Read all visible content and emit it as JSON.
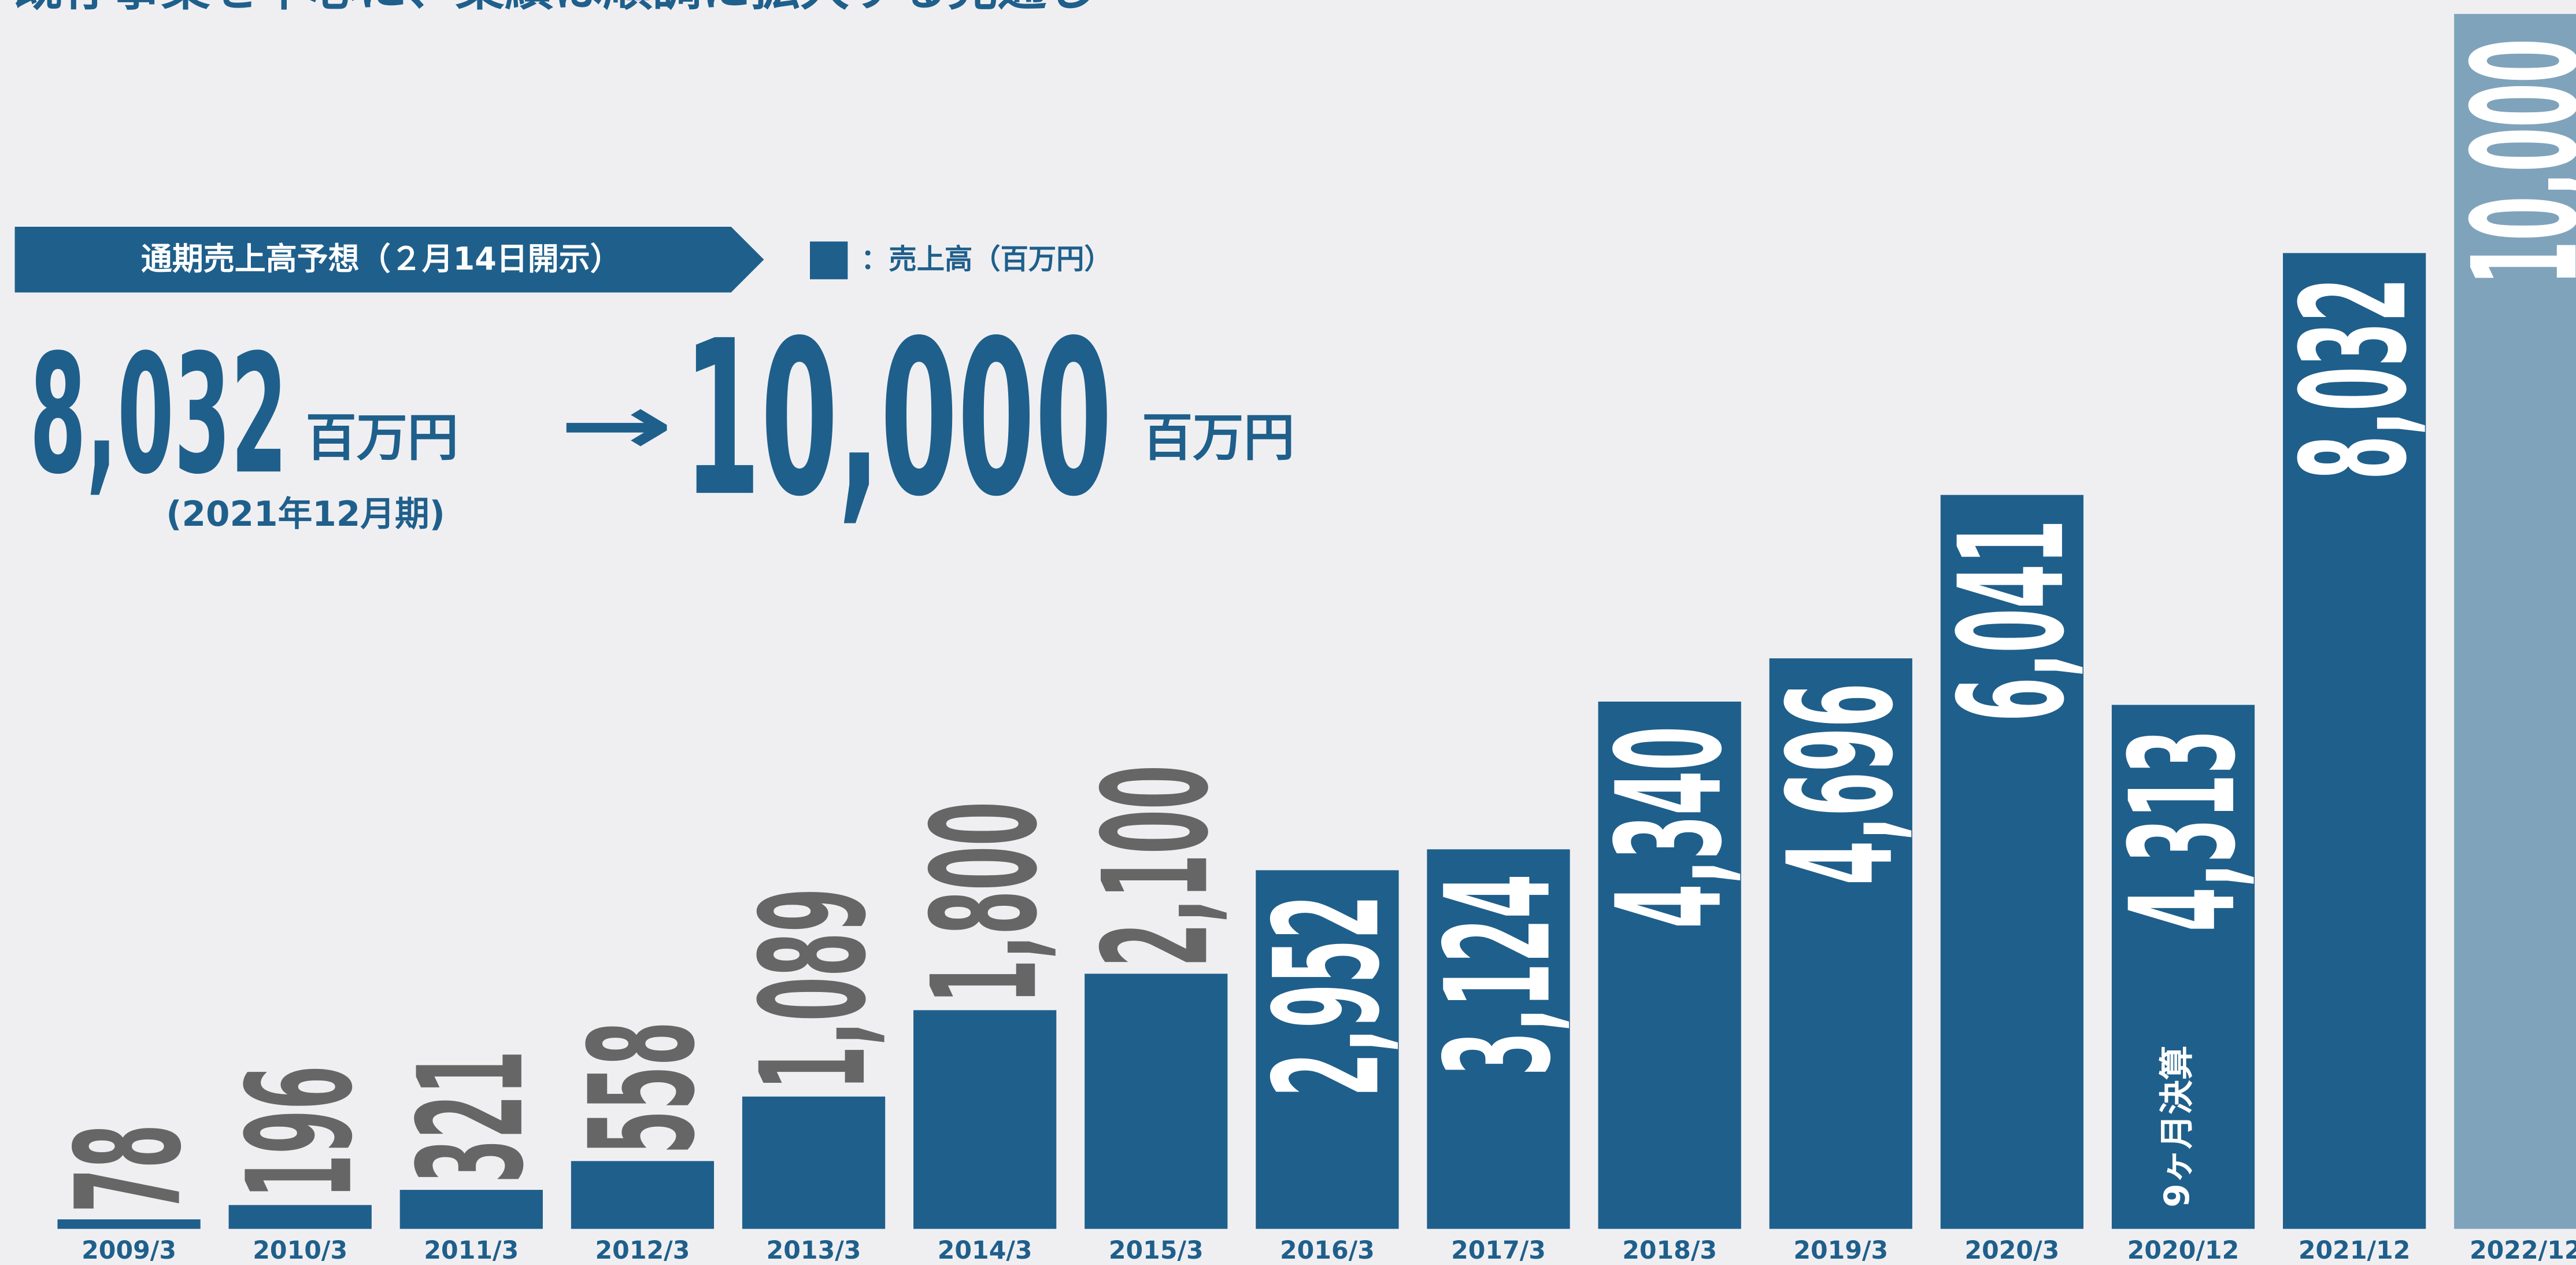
{
  "chart_data": {
    "type": "bar",
    "title": "既存事業を中心に、業績は順調に拡大する見通し",
    "categories": [
      "2009/3",
      "2010/3",
      "2011/3",
      "2012/3",
      "2013/3",
      "2014/3",
      "2015/3",
      "2016/3",
      "2017/3",
      "2018/3",
      "2019/3",
      "2020/3",
      "2020/12",
      "2021/12",
      "2022/12"
    ],
    "values": [
      78,
      196,
      321,
      558,
      1089,
      1800,
      2100,
      2952,
      3124,
      4340,
      4696,
      6041,
      4313,
      8032,
      10000
    ],
    "value_labels": [
      "78",
      "196",
      "321",
      "558",
      "1,089",
      "1,800",
      "2,100",
      "2,952",
      "3,124",
      "4,340",
      "4,696",
      "6,041",
      "4,313",
      "8,032",
      "10,000"
    ],
    "colors": [
      "#1f5f8b",
      "#1f5f8b",
      "#1f5f8b",
      "#1f5f8b",
      "#1f5f8b",
      "#1f5f8b",
      "#1f5f8b",
      "#1f5f8b",
      "#1f5f8b",
      "#1f5f8b",
      "#1f5f8b",
      "#1f5f8b",
      "#1f5f8b",
      "#1f5f8b",
      "#7fa3bb"
    ],
    "ylim": [
      0,
      10000
    ],
    "legend": "：売上高（百万円）",
    "annotation": "9ヶ月決算",
    "forecast": {
      "banner": "通期売上高予想（２月14日開示）",
      "from_value": "8,032",
      "from_unit": "百万円",
      "from_period": "(2021年12月期)",
      "arrow": "→",
      "to_value": "10,000",
      "to_unit": "百万円"
    }
  }
}
